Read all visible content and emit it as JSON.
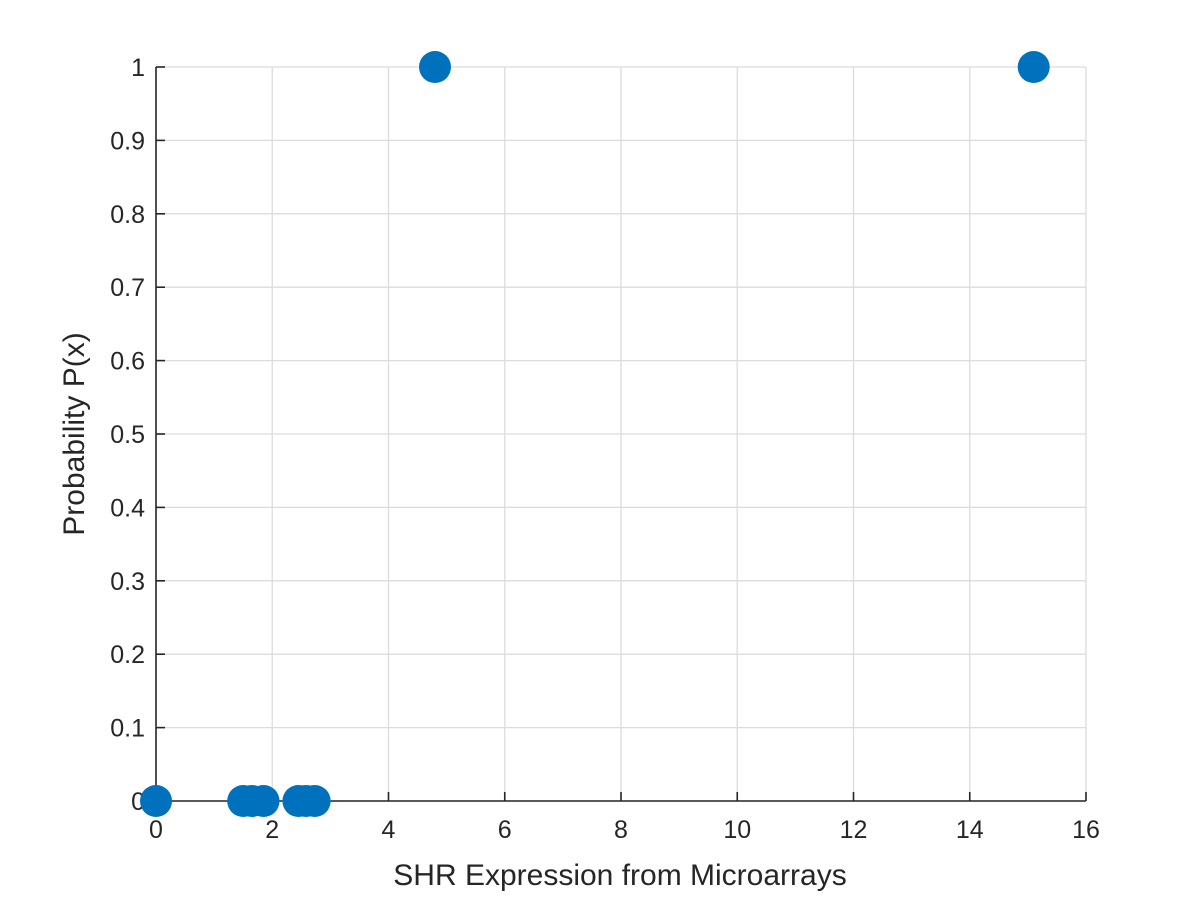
{
  "chart_data": {
    "type": "scatter",
    "title": "",
    "xlabel": "SHR Expression from Microarrays",
    "ylabel": "Probability P(x)",
    "xlim": [
      0,
      16
    ],
    "ylim": [
      0,
      1
    ],
    "xticks": [
      0,
      2,
      4,
      6,
      8,
      10,
      12,
      14,
      16
    ],
    "yticks": [
      0,
      0.1,
      0.2,
      0.3,
      0.4,
      0.5,
      0.6,
      0.7,
      0.8,
      0.9,
      1
    ],
    "grid": true,
    "legend": "none",
    "marker_color": "#0072BD",
    "series": [
      {
        "points": [
          {
            "x": 0.0,
            "y": 0
          },
          {
            "x": 1.5,
            "y": 0
          },
          {
            "x": 1.65,
            "y": 0
          },
          {
            "x": 1.85,
            "y": 0
          },
          {
            "x": 2.45,
            "y": 0
          },
          {
            "x": 2.58,
            "y": 0
          },
          {
            "x": 2.73,
            "y": 0
          },
          {
            "x": 4.8,
            "y": 1
          },
          {
            "x": 15.1,
            "y": 1
          }
        ]
      }
    ]
  }
}
